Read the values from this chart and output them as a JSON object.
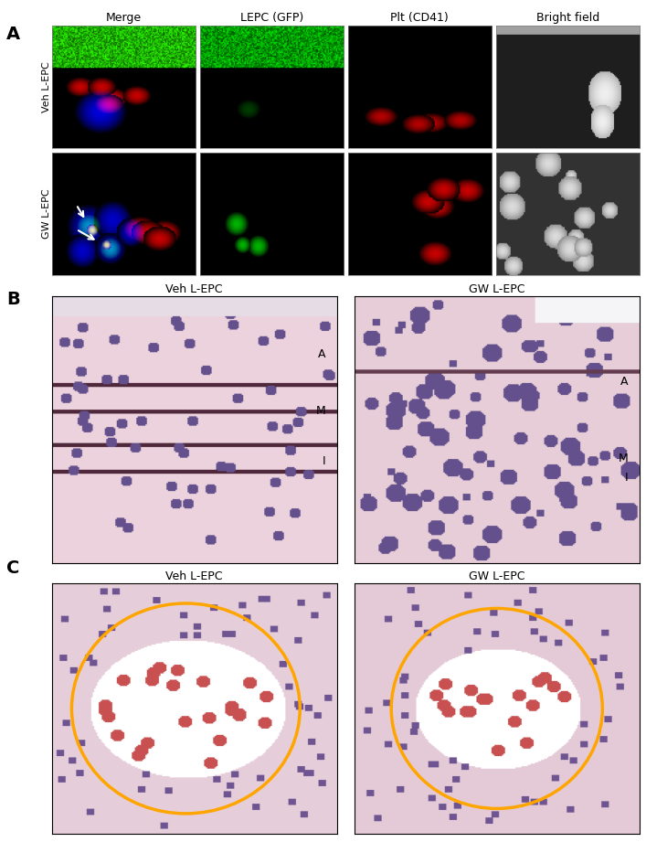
{
  "panel_A_label": "A",
  "panel_B_label": "B",
  "panel_C_label": "C",
  "col_titles": [
    "Merge",
    "LEPC (GFP)",
    "Plt (CD41)",
    "Bright field"
  ],
  "row_labels_A": [
    "Veh L-EPC",
    "GW L-EPC"
  ],
  "titles_B": [
    "Veh L-EPC",
    "GW L-EPC"
  ],
  "titles_C": [
    "Veh L-EPC",
    "GW L-EPC"
  ],
  "fig_width": 7.07,
  "fig_height": 9.21,
  "background_color": "#ffffff"
}
